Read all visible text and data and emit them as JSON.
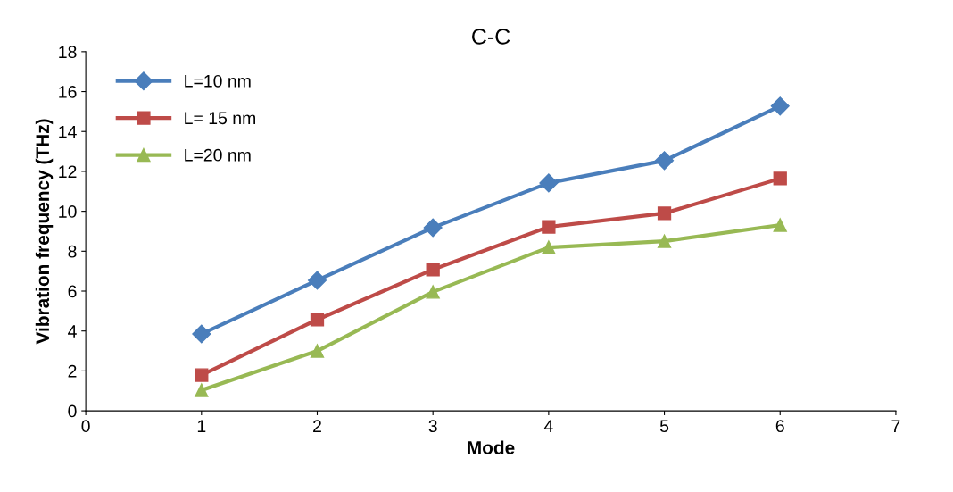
{
  "chart_data": {
    "type": "line",
    "title": "C-C",
    "xlabel": "Mode",
    "ylabel": "Vibration frequency (THz)",
    "x": [
      1,
      2,
      3,
      4,
      5,
      6
    ],
    "series": [
      {
        "name": "L=10 nm",
        "color": "#4a7ebb",
        "marker": "diamond",
        "values": [
          3.85,
          6.54,
          9.18,
          11.42,
          12.54,
          15.27
        ]
      },
      {
        "name": "L= 15 nm",
        "color": "#be4b48",
        "marker": "square",
        "values": [
          1.79,
          4.57,
          7.08,
          9.22,
          9.9,
          11.64
        ]
      },
      {
        "name": "L=20 nm",
        "color": "#98b954",
        "marker": "triangle",
        "values": [
          1.03,
          3.0,
          5.96,
          8.19,
          8.5,
          9.31
        ]
      }
    ],
    "xlim": [
      0,
      7
    ],
    "xticks": [
      0,
      1,
      2,
      3,
      4,
      5,
      6,
      7
    ],
    "ylim": [
      0,
      18
    ],
    "yticks": [
      0,
      2,
      4,
      6,
      8,
      10,
      12,
      14,
      16,
      18
    ],
    "grid": false,
    "legend": "top left",
    "line_style": "solid"
  }
}
